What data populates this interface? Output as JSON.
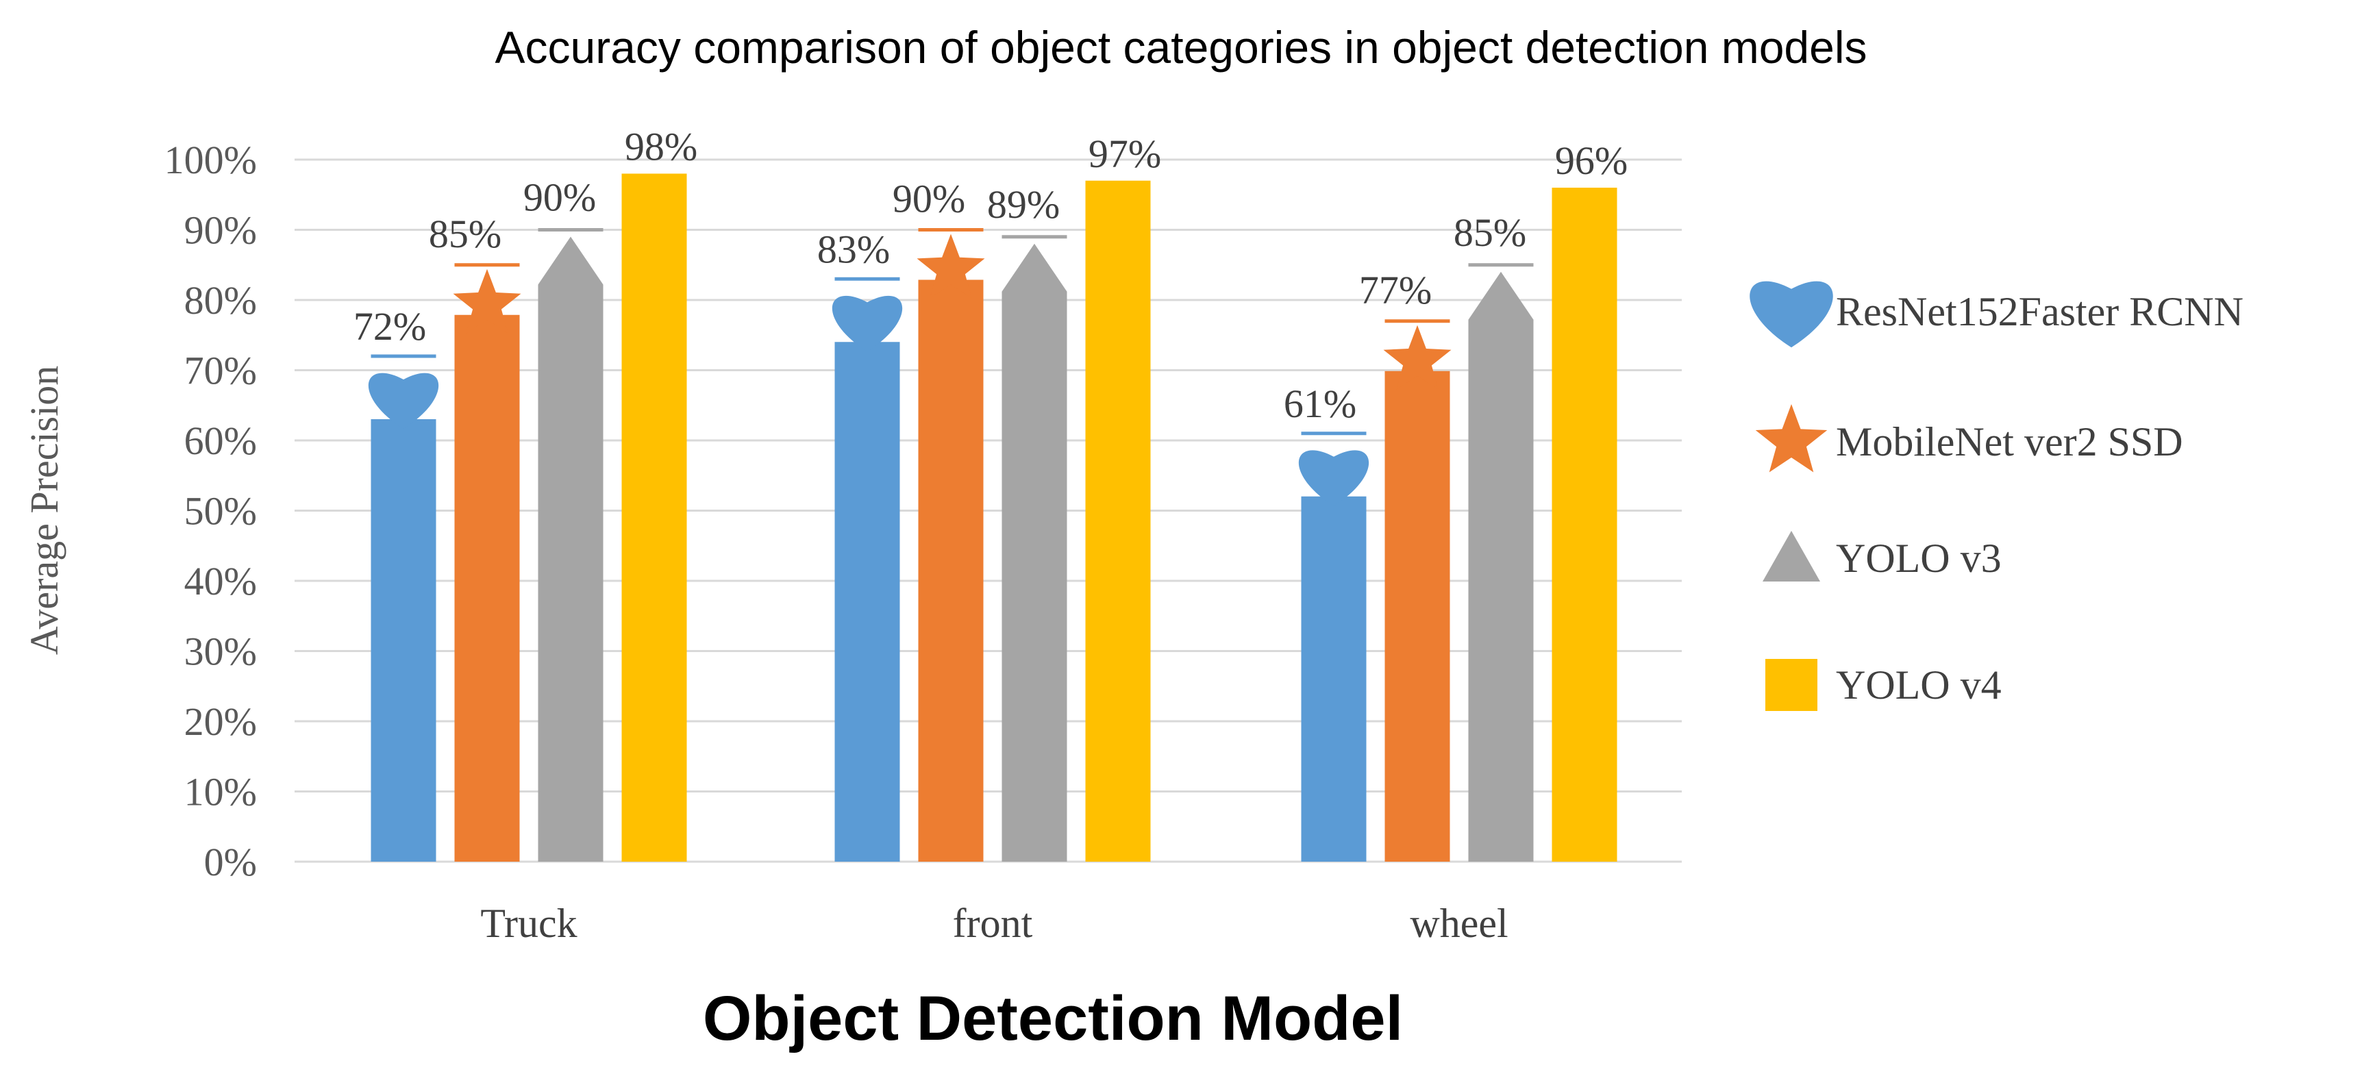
{
  "chart_data": {
    "type": "bar",
    "title": "Accuracy comparison of object categories in object detection models",
    "xlabel": "Object Detection Model",
    "ylabel": "Average Precision",
    "categories": [
      "Truck",
      "front",
      "wheel"
    ],
    "ylim": [
      0,
      100
    ],
    "yticks": [
      "0%",
      "10%",
      "20%",
      "30%",
      "40%",
      "50%",
      "60%",
      "70%",
      "80%",
      "90%",
      "100%"
    ],
    "grid": true,
    "legend_position": "right",
    "series": [
      {
        "name": "ResNet152Faster RCNN",
        "values": [
          72,
          83,
          61
        ],
        "labels": [
          "72%",
          "83%",
          "61%"
        ],
        "color": "#5B9BD5",
        "marker": "heart"
      },
      {
        "name": "MobileNet ver2 SSD",
        "values": [
          85,
          90,
          77
        ],
        "labels": [
          "85%",
          "90%",
          "77%"
        ],
        "color": "#ED7D31",
        "marker": "star"
      },
      {
        "name": "YOLO v3",
        "values": [
          90,
          89,
          85
        ],
        "labels": [
          "90%",
          "89%",
          "85%"
        ],
        "color": "#A5A5A5",
        "marker": "triangle"
      },
      {
        "name": "YOLO v4",
        "values": [
          98,
          97,
          96
        ],
        "labels": [
          "98%",
          "97%",
          "96%"
        ],
        "color": "#FFC000",
        "marker": "square"
      }
    ]
  }
}
